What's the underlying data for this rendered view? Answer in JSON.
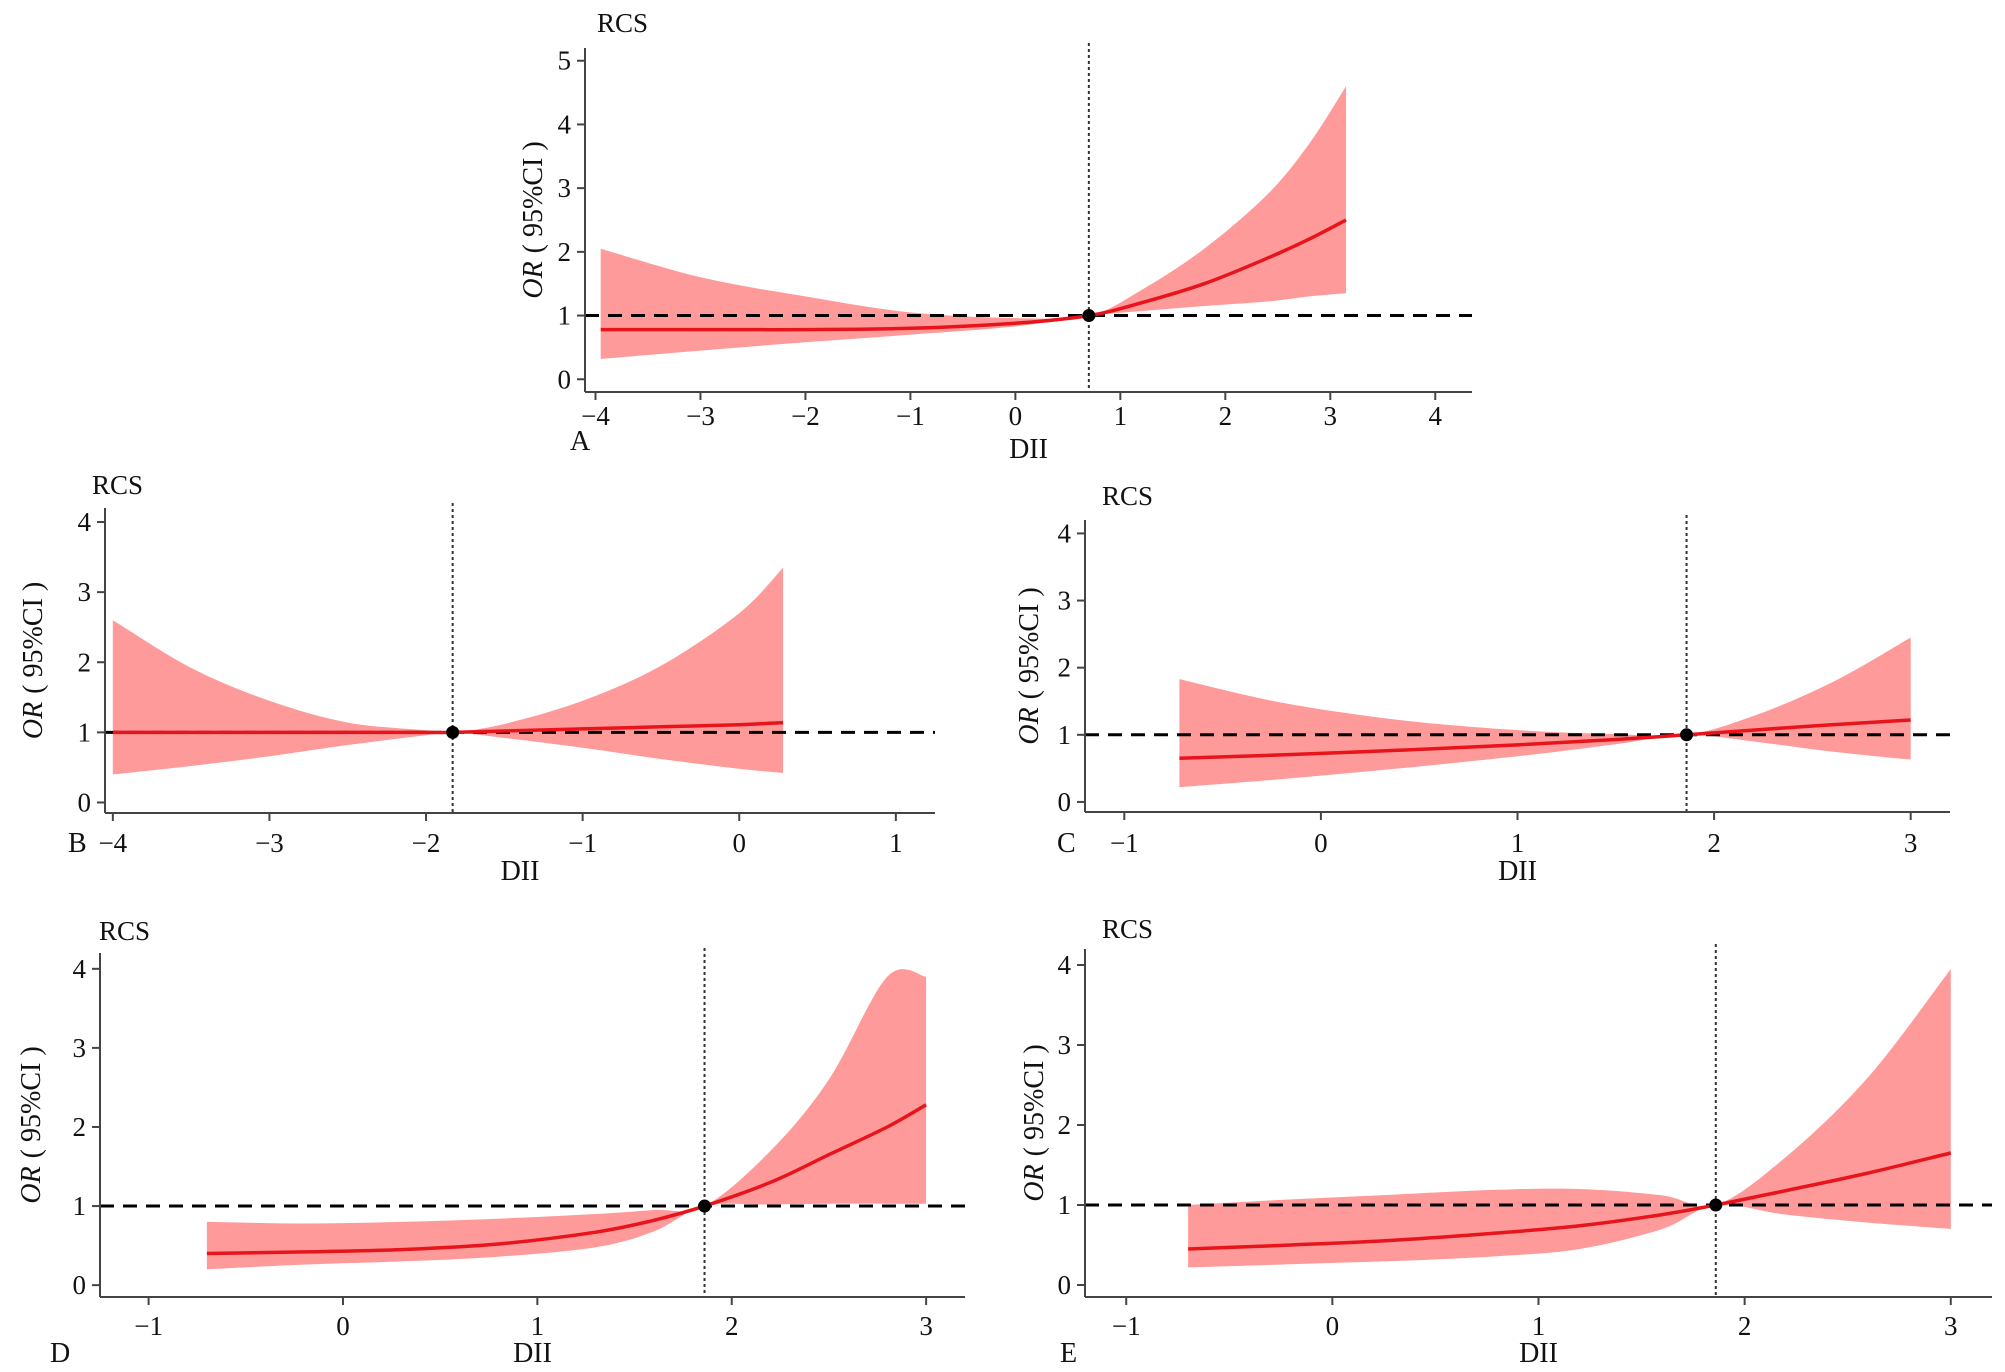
{
  "colors": {
    "ci_band": "#ff9a9a",
    "curve": "#e8141c",
    "reference_line": "#000000",
    "axis": "#444444"
  },
  "chart_data": [
    {
      "panel": "A",
      "type": "line",
      "title": "RCS",
      "xlabel": "DII",
      "ylabel_main": "OR",
      "ylabel_paren": "( 95%CI )",
      "xlim": [
        -4.1,
        4.35
      ],
      "ylim": [
        -0.2,
        5.2
      ],
      "xticks": [
        -4,
        -3,
        -2,
        -1,
        0,
        1,
        2,
        3,
        4
      ],
      "yticks": [
        0,
        1,
        2,
        3,
        4,
        5
      ],
      "x_tick_labels": [
        "−4",
        "−3",
        "−2",
        "−1",
        "0",
        "1",
        "2",
        "3",
        "4"
      ],
      "y_tick_labels": [
        "0",
        "1",
        "2",
        "3",
        "4",
        "5"
      ],
      "reference_y": 1,
      "reference_x": 0.7,
      "x": [
        -3.95,
        -3.0,
        -2.0,
        -1.0,
        0.0,
        0.7,
        1.2,
        1.8,
        2.4,
        2.8,
        3.15
      ],
      "or": [
        0.78,
        0.78,
        0.78,
        0.8,
        0.88,
        1.0,
        1.2,
        1.5,
        1.9,
        2.2,
        2.5
      ],
      "ci_lower": [
        0.32,
        0.45,
        0.58,
        0.7,
        0.83,
        1.0,
        1.07,
        1.15,
        1.22,
        1.3,
        1.35
      ],
      "ci_upper": [
        2.05,
        1.6,
        1.3,
        1.05,
        0.96,
        1.0,
        1.4,
        2.05,
        2.9,
        3.7,
        4.6
      ]
    },
    {
      "panel": "B",
      "type": "line",
      "title": "RCS",
      "xlabel": "DII",
      "ylabel_main": "OR",
      "ylabel_paren": "( 95%CI )",
      "xlim": [
        -4.05,
        1.25
      ],
      "ylim": [
        -0.15,
        4.2
      ],
      "xticks": [
        -4,
        -3,
        -2,
        -1,
        0,
        1
      ],
      "yticks": [
        0,
        1,
        2,
        3,
        4
      ],
      "x_tick_labels": [
        "−4",
        "−3",
        "−2",
        "−1",
        "0",
        "1"
      ],
      "y_tick_labels": [
        "0",
        "1",
        "2",
        "3",
        "4"
      ],
      "reference_y": 1,
      "reference_x": -1.83,
      "x": [
        -4.0,
        -3.5,
        -3.0,
        -2.5,
        -2.0,
        -1.83,
        -1.5,
        -1.0,
        -0.5,
        0.0,
        0.28
      ],
      "or": [
        1.0,
        1.0,
        1.0,
        1.0,
        1.0,
        1.0,
        1.02,
        1.05,
        1.08,
        1.11,
        1.14
      ],
      "ci_lower": [
        0.4,
        0.52,
        0.66,
        0.82,
        0.96,
        1.0,
        0.92,
        0.78,
        0.62,
        0.48,
        0.42
      ],
      "ci_upper": [
        2.6,
        1.92,
        1.45,
        1.14,
        1.03,
        1.0,
        1.12,
        1.45,
        1.95,
        2.7,
        3.35
      ]
    },
    {
      "panel": "C",
      "type": "line",
      "title": "RCS",
      "xlabel": "DII",
      "ylabel_main": "OR",
      "ylabel_paren": "( 95%CI )",
      "xlim": [
        -1.2,
        3.2
      ],
      "ylim": [
        -0.15,
        4.2
      ],
      "xticks": [
        -1,
        0,
        1,
        2,
        3
      ],
      "yticks": [
        0,
        1,
        2,
        3,
        4
      ],
      "x_tick_labels": [
        "−1",
        "0",
        "1",
        "2",
        "3"
      ],
      "y_tick_labels": [
        "0",
        "1",
        "2",
        "3",
        "4"
      ],
      "reference_y": 1,
      "reference_x": 1.86,
      "x": [
        -0.72,
        -0.2,
        0.4,
        1.0,
        1.5,
        1.86,
        2.2,
        2.6,
        3.0
      ],
      "or": [
        0.65,
        0.7,
        0.77,
        0.85,
        0.93,
        1.0,
        1.07,
        1.15,
        1.22
      ],
      "ci_lower": [
        0.22,
        0.34,
        0.5,
        0.68,
        0.86,
        1.0,
        0.9,
        0.75,
        0.63
      ],
      "ci_upper": [
        1.83,
        1.48,
        1.22,
        1.07,
        1.01,
        1.0,
        1.28,
        1.78,
        2.45
      ]
    },
    {
      "panel": "D",
      "type": "line",
      "title": "RCS",
      "xlabel": "DII",
      "ylabel_main": "OR",
      "ylabel_paren": "( 95%CI )",
      "xlim": [
        -1.25,
        3.2
      ],
      "ylim": [
        -0.15,
        4.2
      ],
      "xticks": [
        -1,
        0,
        1,
        2,
        3
      ],
      "yticks": [
        0,
        1,
        2,
        3,
        4
      ],
      "x_tick_labels": [
        "−1",
        "0",
        "1",
        "2",
        "3"
      ],
      "y_tick_labels": [
        "0",
        "1",
        "2",
        "3",
        "4"
      ],
      "reference_y": 1,
      "reference_x": 1.86,
      "x": [
        -0.7,
        -0.2,
        0.3,
        0.8,
        1.3,
        1.6,
        1.86,
        2.2,
        2.5,
        2.8,
        3.0
      ],
      "or": [
        0.4,
        0.42,
        0.45,
        0.52,
        0.67,
        0.82,
        1.0,
        1.3,
        1.65,
        2.0,
        2.28
      ],
      "ci_lower": [
        0.2,
        0.26,
        0.3,
        0.36,
        0.48,
        0.68,
        1.0,
        1.02,
        1.03,
        1.03,
        1.03
      ],
      "ci_upper": [
        0.8,
        0.78,
        0.8,
        0.84,
        0.9,
        0.95,
        1.0,
        1.7,
        2.6,
        3.9,
        3.9
      ]
    },
    {
      "panel": "E",
      "type": "line",
      "title": "RCS",
      "xlabel": "DII",
      "ylabel_main": "OR",
      "ylabel_paren": "( 95%CI )",
      "xlim": [
        -1.2,
        3.2
      ],
      "ylim": [
        -0.15,
        4.2
      ],
      "xticks": [
        -1,
        0,
        1,
        2,
        3
      ],
      "yticks": [
        0,
        1,
        2,
        3,
        4
      ],
      "x_tick_labels": [
        "−1",
        "0",
        "1",
        "2",
        "3"
      ],
      "y_tick_labels": [
        "0",
        "1",
        "2",
        "3",
        "4"
      ],
      "reference_y": 1,
      "reference_x": 1.86,
      "x": [
        -0.7,
        -0.2,
        0.3,
        0.8,
        1.2,
        1.6,
        1.86,
        2.2,
        2.6,
        3.0
      ],
      "or": [
        0.45,
        0.5,
        0.56,
        0.65,
        0.74,
        0.88,
        1.0,
        1.18,
        1.4,
        1.65
      ],
      "ci_lower": [
        0.22,
        0.26,
        0.3,
        0.36,
        0.45,
        0.7,
        1.0,
        0.88,
        0.78,
        0.7
      ],
      "ci_upper": [
        1.0,
        1.07,
        1.13,
        1.19,
        1.2,
        1.12,
        1.0,
        1.6,
        2.6,
        3.95
      ]
    }
  ]
}
